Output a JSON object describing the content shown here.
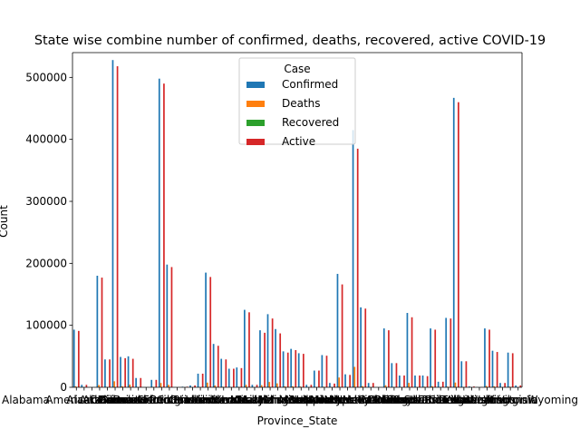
{
  "chart_data": {
    "type": "bar",
    "title": "State wise combine number of confirmed, deaths, recovered, active COVID-19",
    "xlabel": "Province_State",
    "ylabel": "Count",
    "ylim": [
      0,
      540000
    ],
    "yticks": [
      0,
      100000,
      200000,
      300000,
      400000,
      500000
    ],
    "grid": false,
    "legend": {
      "title": "Case",
      "placement": "top-center"
    },
    "categories": [
      "Alabama",
      "Alaska",
      "American Samoa",
      "Arizona",
      "Arkansas",
      "California",
      "Colorado",
      "Connecticut",
      "Delaware",
      "Diamond Princess",
      "District of Columbia",
      "Florida",
      "Georgia",
      "Grand Princess",
      "Guam",
      "Hawaii",
      "Idaho",
      "Illinois",
      "Indiana",
      "Iowa",
      "Kansas",
      "Kentucky",
      "Louisiana",
      "Maine",
      "Maryland",
      "Massachusetts",
      "Michigan",
      "Minnesota",
      "Mississippi",
      "Missouri",
      "Montana",
      "Nebraska",
      "Nevada",
      "New Hampshire",
      "New Jersey",
      "New Mexico",
      "New York",
      "North Carolina",
      "North Dakota",
      "Northern Mariana Islands",
      "Ohio",
      "Oklahoma",
      "Oregon",
      "Pennsylvania",
      "Puerto Rico",
      "Rhode Island",
      "South Carolina",
      "South Dakota",
      "Tennessee",
      "Texas",
      "Utah",
      "Vermont",
      "Virgin Islands",
      "Virginia",
      "Washington",
      "West Virginia",
      "Wisconsin",
      "Wyoming"
    ],
    "series": [
      {
        "name": "Confirmed",
        "color": "#1f77b4",
        "values": [
          93000,
          4000,
          0,
          180000,
          45000,
          528000,
          49000,
          50000,
          15000,
          49,
          12000,
          498000,
          198000,
          103,
          1000,
          3000,
          22000,
          185000,
          70000,
          46000,
          30000,
          32000,
          125000,
          4000,
          92000,
          118000,
          94000,
          58000,
          62000,
          55000,
          4000,
          27000,
          52000,
          7000,
          183000,
          21000,
          415000,
          129000,
          7000,
          40,
          95000,
          39000,
          19000,
          120000,
          19000,
          19000,
          95000,
          9000,
          112000,
          467000,
          42000,
          1400,
          400,
          95000,
          59000,
          7000,
          56000,
          3000
        ]
      },
      {
        "name": "Deaths",
        "color": "#ff7f0e",
        "values": [
          1700,
          30,
          0,
          3700,
          500,
          9700,
          1800,
          4400,
          600,
          2,
          600,
          7000,
          4000,
          3,
          10,
          30,
          200,
          7600,
          2900,
          900,
          400,
          700,
          4000,
          120,
          3500,
          8600,
          6400,
          1600,
          1700,
          1200,
          60,
          300,
          900,
          400,
          15800,
          700,
          33000,
          2000,
          100,
          2,
          3300,
          500,
          300,
          7200,
          200,
          1000,
          1900,
          130,
          1100,
          7700,
          300,
          60,
          10,
          2300,
          1700,
          100,
          1000,
          30
        ]
      },
      {
        "name": "Recovered",
        "color": "#2ca02c",
        "values": [
          0,
          0,
          0,
          0,
          0,
          0,
          0,
          0,
          0,
          0,
          0,
          0,
          0,
          0,
          0,
          0,
          0,
          0,
          0,
          0,
          0,
          0,
          0,
          0,
          0,
          0,
          0,
          0,
          0,
          0,
          0,
          0,
          0,
          0,
          0,
          0,
          0,
          0,
          0,
          0,
          0,
          0,
          0,
          0,
          0,
          0,
          0,
          0,
          0,
          0,
          0,
          0,
          0,
          0,
          0,
          0,
          0,
          0
        ]
      },
      {
        "name": "Active",
        "color": "#d62728",
        "values": [
          91000,
          4000,
          0,
          177000,
          45000,
          518000,
          47000,
          46000,
          15000,
          47,
          12000,
          490000,
          194000,
          100,
          1000,
          3000,
          22000,
          178000,
          67000,
          45000,
          30000,
          31000,
          121000,
          4000,
          88000,
          111000,
          87000,
          56000,
          60000,
          54000,
          4000,
          27000,
          51000,
          6000,
          166000,
          20000,
          385000,
          127000,
          7000,
          38,
          92000,
          39000,
          19000,
          113000,
          19000,
          18000,
          93000,
          9000,
          111000,
          460000,
          42000,
          1300,
          390,
          93000,
          57000,
          7000,
          55000,
          3000
        ]
      }
    ]
  }
}
